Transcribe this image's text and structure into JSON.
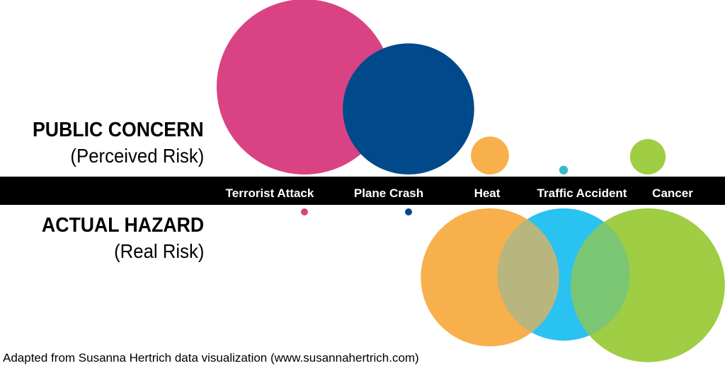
{
  "labels": {
    "top_title": "PUBLIC CONCERN",
    "top_subtitle": "(Perceived Risk)",
    "bottom_title": "ACTUAL HAZARD",
    "bottom_subtitle": "(Real Risk)"
  },
  "credit": "Adapted from Susanna Hertrich data visualization (www.susannahertrich.com)",
  "chart_data": {
    "type": "bubble",
    "size_encoding": "relative area (largest = 100)",
    "categories": [
      "Terrorist Attack",
      "Plane Crash",
      "Heat",
      "Traffic Accident",
      "Cancer"
    ],
    "colors": [
      "#d94383",
      "#00498b",
      "#f7b04b",
      "#2ac2f1",
      "#9fcd43"
    ],
    "series": [
      {
        "name": "PUBLIC CONCERN",
        "values": [
          100,
          56,
          4.7,
          0.25,
          4.1
        ]
      },
      {
        "name": "ACTUAL HAZARD",
        "values": [
          0.16,
          0.16,
          62,
          57,
          77
        ]
      }
    ],
    "small_dot_color_traffic_top": "#35bccb",
    "overlap_colors": {
      "heat_traffic": "#b9b57e",
      "traffic_cancer": "#7bc673"
    }
  }
}
